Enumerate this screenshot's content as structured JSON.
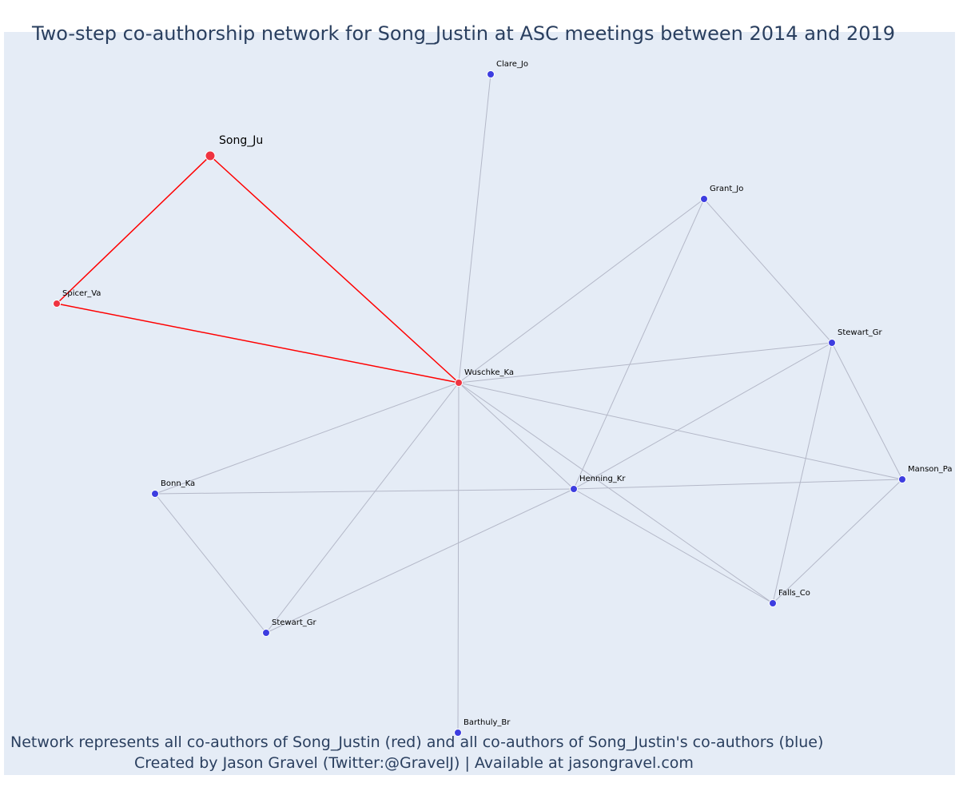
{
  "title": "Two-step co-authorship network for Song_Justin at ASC meetings between 2014 and 2019",
  "footer": {
    "line1": "Network represents all co-authors of Song_Justin (red) and all co-authors of Song_Justin's co-authors (blue)",
    "line2": "Created by Jason Gravel (Twitter:@GravelJ) | Available at jasongravel.com"
  },
  "colors": {
    "background": "#e5ecf6",
    "focal": "#ef3340",
    "first_step": "#ef3340",
    "second_step": "#3d3de0",
    "focal_edge": "#ff0000",
    "other_edge": "#b4b8c8",
    "text": "#2a3f5f"
  },
  "network": {
    "nodes": [
      {
        "id": "song",
        "label": "Song_Ju",
        "group": "focal"
      },
      {
        "id": "spicer",
        "label": "Spicer_Va",
        "group": "first_step"
      },
      {
        "id": "wuschke",
        "label": "Wuschke_Ka",
        "group": "first_step"
      },
      {
        "id": "clare",
        "label": "Clare_Jo",
        "group": "second_step"
      },
      {
        "id": "grant",
        "label": "Grant_Jo",
        "group": "second_step"
      },
      {
        "id": "stewart1",
        "label": "Stewart_Gr",
        "group": "second_step"
      },
      {
        "id": "manson",
        "label": "Manson_Pa",
        "group": "second_step"
      },
      {
        "id": "henning",
        "label": "Henning_Kr",
        "group": "second_step"
      },
      {
        "id": "bonn",
        "label": "Bonn_Ka",
        "group": "second_step"
      },
      {
        "id": "falls",
        "label": "Falls_Co",
        "group": "second_step"
      },
      {
        "id": "stewart2",
        "label": "Stewart_Gr",
        "group": "second_step"
      },
      {
        "id": "barthuly",
        "label": "Barthuly_Br",
        "group": "second_step"
      }
    ],
    "edges": [
      {
        "source": "song",
        "target": "spicer",
        "focal": true
      },
      {
        "source": "song",
        "target": "wuschke",
        "focal": true
      },
      {
        "source": "spicer",
        "target": "wuschke",
        "focal": true
      },
      {
        "source": "wuschke",
        "target": "clare",
        "focal": false
      },
      {
        "source": "wuschke",
        "target": "grant",
        "focal": false
      },
      {
        "source": "wuschke",
        "target": "stewart1",
        "focal": false
      },
      {
        "source": "wuschke",
        "target": "manson",
        "focal": false
      },
      {
        "source": "wuschke",
        "target": "henning",
        "focal": false
      },
      {
        "source": "wuschke",
        "target": "bonn",
        "focal": false
      },
      {
        "source": "wuschke",
        "target": "falls",
        "focal": false
      },
      {
        "source": "wuschke",
        "target": "stewart2",
        "focal": false
      },
      {
        "source": "wuschke",
        "target": "barthuly",
        "focal": false
      },
      {
        "source": "grant",
        "target": "stewart1",
        "focal": false
      },
      {
        "source": "grant",
        "target": "henning",
        "focal": false
      },
      {
        "source": "stewart1",
        "target": "henning",
        "focal": false
      },
      {
        "source": "stewart1",
        "target": "manson",
        "focal": false
      },
      {
        "source": "stewart1",
        "target": "falls",
        "focal": false
      },
      {
        "source": "manson",
        "target": "henning",
        "focal": false
      },
      {
        "source": "manson",
        "target": "falls",
        "focal": false
      },
      {
        "source": "henning",
        "target": "bonn",
        "focal": false
      },
      {
        "source": "henning",
        "target": "falls",
        "focal": false
      },
      {
        "source": "henning",
        "target": "stewart2",
        "focal": false
      },
      {
        "source": "bonn",
        "target": "stewart2",
        "focal": false
      }
    ]
  }
}
